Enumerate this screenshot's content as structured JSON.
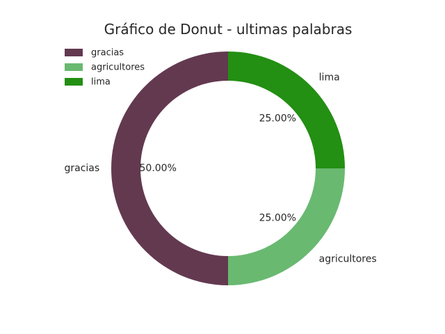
{
  "chart_data": {
    "type": "pie",
    "title": "Gráfico de Donut - ultimas palabras",
    "slices": [
      {
        "label": "gracias",
        "value": 50.0,
        "pct_label": "50.00%",
        "color": "#633950"
      },
      {
        "label": "agricultores",
        "value": 25.0,
        "pct_label": "25.00%",
        "color": "#69b971"
      },
      {
        "label": "lima",
        "value": 25.0,
        "pct_label": "25.00%",
        "color": "#238f13"
      }
    ],
    "legend": {
      "position": "top-left",
      "entries": [
        "gracias",
        "agricultores",
        "lima"
      ]
    },
    "donut": true,
    "start_angle_deg": 90,
    "direction": "counterclockwise"
  }
}
